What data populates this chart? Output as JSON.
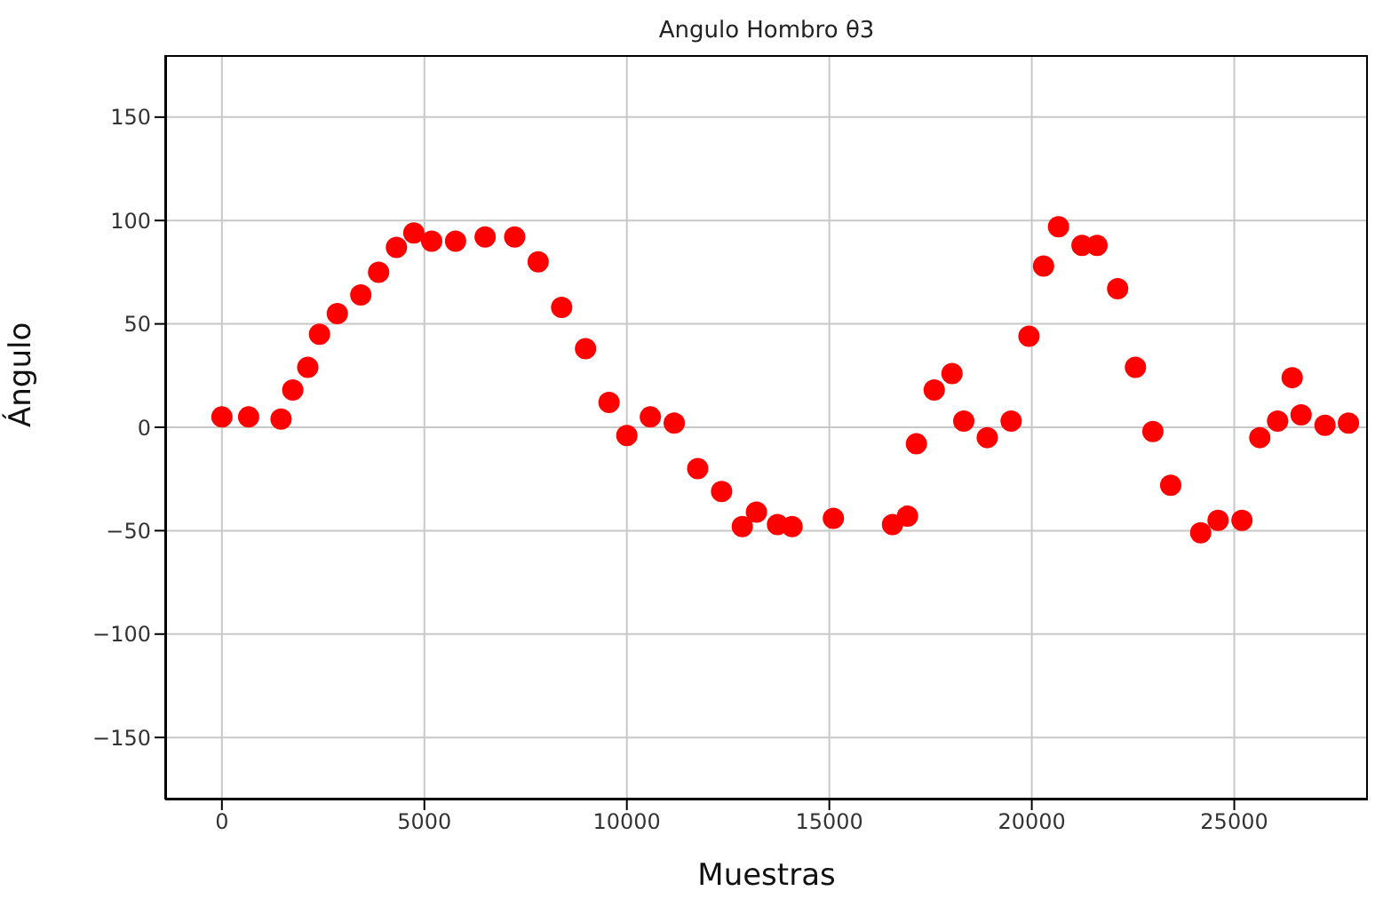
{
  "chart_data": {
    "type": "scatter",
    "title": "Angulo Hombro θ3",
    "xlabel": "Muestras",
    "ylabel": "Ángulo",
    "xlim": [
      -1400,
      28300
    ],
    "xticks": [
      0,
      5000,
      10000,
      15000,
      20000,
      25000
    ],
    "ylim": [
      -180,
      180
    ],
    "yticks": [
      -150,
      -100,
      -50,
      0,
      50,
      100,
      150
    ],
    "grid": true,
    "marker": "circle",
    "series": [
      {
        "color": "#ff0000",
        "x": [
          0,
          660,
          1460,
          1750,
          2120,
          2410,
          2850,
          3430,
          3870,
          4310,
          4740,
          5180,
          5770,
          6500,
          7230,
          7810,
          8390,
          8980,
          9560,
          10000,
          10580,
          11170,
          11750,
          12340,
          12850,
          13200,
          13720,
          14080,
          15100,
          16560,
          16930,
          17150,
          17590,
          18030,
          18320,
          18900,
          19490,
          19930,
          20290,
          20660,
          21240,
          21610,
          22120,
          22560,
          22990,
          23430,
          24170,
          24600,
          25190,
          25630,
          26070,
          26430,
          26650,
          27240,
          27820
        ],
        "values": [
          5,
          5,
          4,
          18,
          29,
          45,
          55,
          64,
          75,
          87,
          94,
          90,
          90,
          92,
          92,
          80,
          58,
          38,
          12,
          -4,
          5,
          2,
          -20,
          -31,
          -48,
          -41,
          -47,
          -48,
          -44,
          -47,
          -43,
          -8,
          18,
          26,
          3,
          -5,
          3,
          44,
          78,
          97,
          88,
          88,
          67,
          29,
          -2,
          -28,
          -51,
          -45,
          -45,
          -5,
          3,
          24,
          6,
          1,
          2
        ]
      }
    ]
  }
}
